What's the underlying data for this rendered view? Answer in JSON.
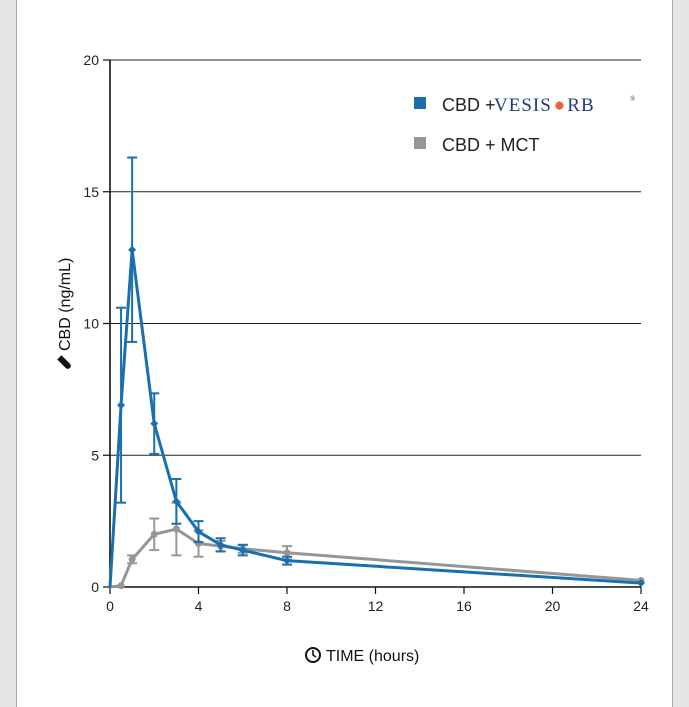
{
  "chart_data": {
    "type": "line",
    "x_label": "TIME (hours)",
    "y_label": "CBD (ng/mL)",
    "xlim": [
      0,
      24
    ],
    "ylim": [
      0,
      20
    ],
    "x_ticks": [
      0,
      4,
      8,
      12,
      16,
      20,
      24
    ],
    "y_ticks": [
      0,
      5,
      10,
      15,
      20
    ],
    "grid": "horizontal",
    "legend_position": "top-right",
    "series": [
      {
        "name": "CBD + VESISORB®",
        "color": "#1a6faf",
        "marker": "diamond",
        "points": [
          {
            "x": 0,
            "y": 0,
            "err": 0
          },
          {
            "x": 0.5,
            "y": 6.9,
            "err": 3.7
          },
          {
            "x": 1,
            "y": 12.8,
            "err": 3.5
          },
          {
            "x": 2,
            "y": 6.2,
            "err": 1.15
          },
          {
            "x": 3,
            "y": 3.25,
            "err": 0.85
          },
          {
            "x": 4,
            "y": 2.1,
            "err": 0.4
          },
          {
            "x": 5,
            "y": 1.6,
            "err": 0.25
          },
          {
            "x": 6,
            "y": 1.4,
            "err": 0.2
          },
          {
            "x": 8,
            "y": 1.0,
            "err": 0.15
          },
          {
            "x": 24,
            "y": 0.15,
            "err": 0
          }
        ]
      },
      {
        "name": "CBD + MCT",
        "color": "#969696",
        "marker": "circle",
        "points": [
          {
            "x": 0,
            "y": 0,
            "err": 0
          },
          {
            "x": 0.5,
            "y": 0.05,
            "err": 0
          },
          {
            "x": 1,
            "y": 1.05,
            "err": 0.15
          },
          {
            "x": 2,
            "y": 2.0,
            "err": 0.6
          },
          {
            "x": 3,
            "y": 2.2,
            "err": 1.0
          },
          {
            "x": 4,
            "y": 1.65,
            "err": 0.5
          },
          {
            "x": 5,
            "y": 1.55,
            "err": 0.2
          },
          {
            "x": 6,
            "y": 1.45,
            "err": 0.15
          },
          {
            "x": 8,
            "y": 1.3,
            "err": 0.25
          },
          {
            "x": 24,
            "y": 0.25,
            "err": 0
          }
        ]
      }
    ]
  },
  "legend": {
    "item1_prefix": "CBD +",
    "item1_brand_a": "VESIS",
    "item1_brand_b": "RB",
    "item1_reg": "®",
    "item2": "CBD + MCT"
  },
  "icons": {
    "y_axis": "test-tube-icon",
    "x_axis": "clock-icon"
  }
}
